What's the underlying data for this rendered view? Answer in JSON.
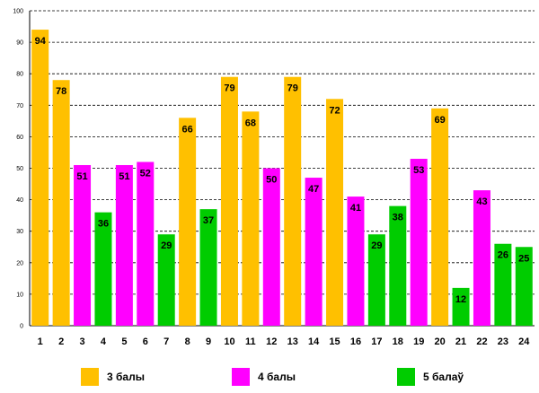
{
  "chart_data": {
    "type": "bar",
    "title": "",
    "xlabel": "",
    "ylabel": "",
    "ylim": [
      0,
      100
    ],
    "yticks": [
      0,
      10,
      20,
      30,
      40,
      50,
      60,
      70,
      80,
      90,
      100
    ],
    "grid": true,
    "categories": [
      "1",
      "2",
      "3",
      "4",
      "5",
      "6",
      "7",
      "8",
      "9",
      "10",
      "11",
      "12",
      "13",
      "14",
      "15",
      "16",
      "17",
      "18",
      "19",
      "20",
      "21",
      "22",
      "23",
      "24"
    ],
    "values": [
      94,
      78,
      51,
      36,
      51,
      52,
      29,
      66,
      37,
      79,
      68,
      50,
      79,
      47,
      72,
      41,
      29,
      38,
      53,
      69,
      12,
      43,
      26,
      25
    ],
    "groups": [
      "3 балы",
      "3 балы",
      "4 балы",
      "5 балаў",
      "4 балы",
      "4 балы",
      "5 балаў",
      "3 балы",
      "5 балаў",
      "3 балы",
      "3 балы",
      "4 балы",
      "3 балы",
      "4 балы",
      "3 балы",
      "4 балы",
      "5 балаў",
      "5 балаў",
      "4 балы",
      "3 балы",
      "5 балаў",
      "4 балы",
      "5 балаў",
      "5 балаў"
    ],
    "legend": [
      {
        "name": "3 балы",
        "color": "#FFC000"
      },
      {
        "name": "4 балы",
        "color": "#FF00FF"
      },
      {
        "name": "5 балаў",
        "color": "#00CC00"
      }
    ],
    "legend_position": "bottom"
  }
}
